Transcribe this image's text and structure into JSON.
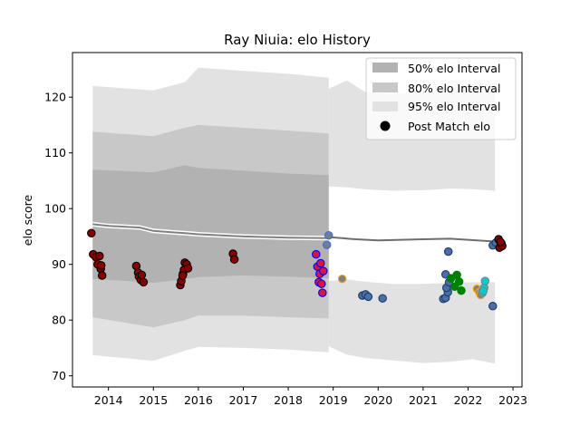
{
  "chart_data": {
    "type": "scatter",
    "title": "Ray Niuia: elo History",
    "xlabel": "",
    "ylabel": "elo score",
    "xlim": [
      2013.2,
      2023.2
    ],
    "ylim": [
      68,
      128
    ],
    "xticks": [
      2014,
      2015,
      2016,
      2017,
      2018,
      2019,
      2020,
      2021,
      2022,
      2023
    ],
    "yticks": [
      70,
      80,
      90,
      100,
      110,
      120
    ],
    "legend_position": "top-right",
    "legend": [
      {
        "label": "50% elo Interval",
        "color": "#b2b2b2"
      },
      {
        "label": "80% elo Interval",
        "color": "#c8c8c8"
      },
      {
        "label": "95% elo Interval",
        "color": "#e2e2e2"
      },
      {
        "label": "Post Match elo",
        "color": "#000000"
      }
    ],
    "mean_line_a": [
      [
        2013.65,
        97.2
      ],
      [
        2014.0,
        96.9
      ],
      [
        2014.7,
        96.6
      ],
      [
        2015.0,
        96.0
      ],
      [
        2015.5,
        95.7
      ],
      [
        2015.7,
        95.6
      ],
      [
        2016.0,
        95.4
      ],
      [
        2017.0,
        95.0
      ],
      [
        2018.0,
        94.8
      ],
      [
        2018.9,
        94.7
      ]
    ],
    "mean_line_b": [
      [
        2018.9,
        94.9
      ],
      [
        2019.5,
        94.5
      ],
      [
        2020.0,
        94.3
      ],
      [
        2021.0,
        94.5
      ],
      [
        2021.6,
        94.6
      ],
      [
        2022.0,
        94.4
      ],
      [
        2022.6,
        94.1
      ]
    ],
    "band95": {
      "x": [
        2013.65,
        2015.0,
        2015.7,
        2016.0,
        2017.0,
        2018.0,
        2018.9
      ],
      "upper": [
        122.0,
        121.2,
        122.7,
        125.3,
        124.7,
        124.2,
        123.5
      ],
      "lower": [
        73.7,
        72.7,
        74.5,
        75.2,
        75.0,
        74.7,
        74.2
      ]
    },
    "band80": {
      "x": [
        2013.65,
        2015.0,
        2015.7,
        2016.0,
        2017.0,
        2018.0,
        2018.9
      ],
      "upper": [
        113.8,
        113.0,
        114.5,
        115.0,
        114.5,
        114.0,
        113.5
      ],
      "lower": [
        80.5,
        78.7,
        80.0,
        80.8,
        80.8,
        80.5,
        80.3
      ]
    },
    "band50": {
      "x": [
        2013.65,
        2015.0,
        2015.7,
        2016.0,
        2017.0,
        2018.0,
        2018.9
      ],
      "upper": [
        107.0,
        106.5,
        107.8,
        107.3,
        106.8,
        106.3,
        106.0
      ],
      "lower": [
        87.4,
        86.7,
        87.3,
        87.7,
        88.0,
        87.8,
        87.5
      ]
    },
    "band95_later": {
      "x": [
        2018.9,
        2019.3,
        2019.7,
        2020.3,
        2021.0,
        2021.6,
        2022.1,
        2022.6
      ],
      "upper": [
        121.5,
        123.0,
        121.0,
        120.5,
        121.0,
        121.5,
        122.5,
        122.3
      ],
      "lower": [
        75.3,
        73.8,
        73.2,
        72.8,
        72.3,
        72.5,
        73.0,
        72.2
      ]
    },
    "band80_later": {
      "x": [
        2018.9,
        2019.3,
        2019.7,
        2020.3,
        2021.0,
        2021.6,
        2022.1,
        2022.6
      ],
      "upper": [
        104.0,
        103.8,
        103.5,
        103.2,
        103.3,
        103.6,
        103.5,
        103.2
      ],
      "lower": [
        87.0,
        87.3,
        86.9,
        86.5,
        86.5,
        86.7,
        86.8,
        86.8
      ]
    },
    "groups": [
      {
        "fill": "#8b0000",
        "edge": "#000000",
        "points": [
          [
            2013.62,
            95.6
          ],
          [
            2013.66,
            91.8
          ],
          [
            2013.72,
            91.3
          ],
          [
            2013.76,
            90.0
          ],
          [
            2013.8,
            91.5
          ],
          [
            2013.83,
            89.2
          ],
          [
            2013.86,
            88.0
          ],
          [
            2013.84,
            89.8
          ]
        ]
      },
      {
        "fill": "#8b0000",
        "edge": "#000000",
        "points": [
          [
            2014.62,
            89.7
          ],
          [
            2014.66,
            88.5
          ],
          [
            2014.68,
            87.8
          ],
          [
            2014.72,
            87.2
          ],
          [
            2014.74,
            88.1
          ],
          [
            2014.78,
            86.8
          ]
        ]
      },
      {
        "fill": "#8b0000",
        "edge": "#000000",
        "points": [
          [
            2015.6,
            86.3
          ],
          [
            2015.62,
            87.0
          ],
          [
            2015.66,
            88.3
          ],
          [
            2015.68,
            89.0
          ],
          [
            2015.7,
            90.3
          ],
          [
            2015.74,
            90.0
          ],
          [
            2015.77,
            89.3
          ],
          [
            2015.65,
            88.0
          ]
        ]
      },
      {
        "fill": "#8b0000",
        "edge": "#000000",
        "points": [
          [
            2016.77,
            91.9
          ],
          [
            2016.8,
            90.9
          ]
        ]
      },
      {
        "fill": "#dc143c",
        "edge": "#0000ff",
        "points": [
          [
            2018.62,
            91.8
          ],
          [
            2018.65,
            89.6
          ],
          [
            2018.68,
            86.8
          ],
          [
            2018.7,
            88.3
          ],
          [
            2018.72,
            90.2
          ],
          [
            2018.74,
            86.5
          ],
          [
            2018.76,
            84.9
          ],
          [
            2018.78,
            88.8
          ]
        ]
      },
      {
        "fill": "#708090",
        "edge": "#4169e1",
        "points": [
          [
            2018.86,
            93.5
          ],
          [
            2018.9,
            95.2
          ]
        ]
      },
      {
        "fill": "#808080",
        "edge": "#ffa500",
        "points": [
          [
            2019.2,
            87.4
          ]
        ]
      },
      {
        "fill": "#4a6fa5",
        "edge": "#1f3a6e",
        "points": [
          [
            2019.65,
            84.4
          ],
          [
            2019.72,
            84.6
          ],
          [
            2019.78,
            84.2
          ],
          [
            2020.1,
            83.9
          ],
          [
            2021.45,
            83.8
          ],
          [
            2021.5,
            84.0
          ],
          [
            2021.55,
            85.0
          ],
          [
            2021.52,
            85.8
          ],
          [
            2021.58,
            86.8
          ],
          [
            2021.5,
            88.2
          ],
          [
            2021.56,
            92.3
          ],
          [
            2022.55,
            82.5
          ],
          [
            2022.55,
            93.4
          ],
          [
            2022.62,
            93.9
          ]
        ]
      },
      {
        "fill": "#008000",
        "edge": "#008000",
        "points": [
          [
            2021.62,
            87.5
          ],
          [
            2021.75,
            88.1
          ],
          [
            2021.8,
            86.9
          ],
          [
            2021.85,
            85.3
          ],
          [
            2021.7,
            86.0
          ]
        ]
      },
      {
        "fill": "#808080",
        "edge": "#ffa500",
        "points": [
          [
            2022.2,
            85.6
          ],
          [
            2022.25,
            85.0
          ],
          [
            2022.28,
            84.5
          ],
          [
            2022.3,
            85.3
          ]
        ]
      },
      {
        "fill": "#00ced1",
        "edge": "#808080",
        "points": [
          [
            2022.32,
            84.9
          ],
          [
            2022.36,
            85.8
          ],
          [
            2022.38,
            87.0
          ],
          [
            2022.34,
            85.2
          ]
        ]
      },
      {
        "fill": "#8b0000",
        "edge": "#000000",
        "points": [
          [
            2022.68,
            94.5
          ],
          [
            2022.7,
            93.0
          ],
          [
            2022.74,
            93.8
          ],
          [
            2022.76,
            93.3
          ],
          [
            2022.72,
            94.0
          ]
        ]
      }
    ]
  }
}
